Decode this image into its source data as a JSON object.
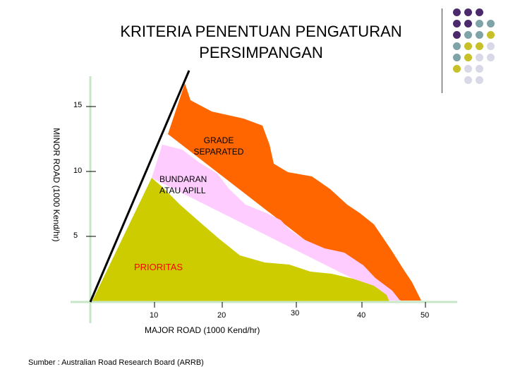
{
  "title_line1": "KRITERIA PENENTUAN PENGATURAN",
  "title_line2": "PERSIMPANGAN",
  "y_axis_label": "MINOR ROAD  (1000 Kend/hr)",
  "x_axis_label": "MAJOR ROAD  (1000 Kend/hr)",
  "y_ticks": [
    "15",
    "10",
    "5"
  ],
  "x_ticks": [
    "10",
    "20",
    "30",
    "40",
    "50"
  ],
  "regions": {
    "grade_separated": {
      "line1": "GRADE",
      "line2": "SEPARATED",
      "color": "#ff6600"
    },
    "bundaran": {
      "line1": "BUNDARAN",
      "line2": "ATAU APILL",
      "color": "#ffccff"
    },
    "prioritas": {
      "label": "PRIORITAS",
      "color": "#cccc00"
    }
  },
  "source": "Sumber : Australian Road Research Board (ARRB)",
  "decor_colors": {
    "purple": "#4b2a6b",
    "teal": "#7fa3a6",
    "olive": "#c8c02a",
    "lavender": "#d8d8e6"
  }
}
